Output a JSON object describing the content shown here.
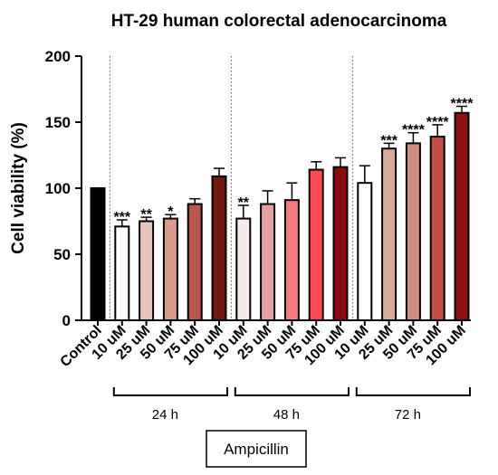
{
  "chart_data": {
    "type": "bar",
    "title": "HT-29  human colorectal adenocarcinoma",
    "ylabel": "Cell viability (%)",
    "xlabel": "",
    "ylim": [
      0,
      200
    ],
    "yticks": [
      "0",
      "50",
      "100",
      "150",
      "200"
    ],
    "categories": [
      "Control",
      "10 uM",
      "25 uM",
      "50 uM",
      "75 uM",
      "100 uM",
      "10 uM",
      "25 uM",
      "50 uM",
      "75 uM",
      "100 uM",
      "10 uM",
      "25 uM",
      "50 uM",
      "75 uM",
      "100 uM"
    ],
    "values": [
      100,
      71,
      75,
      77,
      88,
      109,
      77,
      88,
      91,
      114,
      116,
      104,
      130,
      134,
      139,
      157
    ],
    "errors": [
      0,
      5,
      3,
      3,
      4,
      6,
      10,
      10,
      13,
      6,
      7,
      13,
      4,
      8,
      9,
      5
    ],
    "significance": [
      "",
      "***",
      "**",
      "*",
      "",
      "",
      "**",
      "",
      "",
      "",
      "",
      "",
      "***",
      "****",
      "****",
      "****"
    ],
    "colors": [
      "#000000",
      "#ffffff",
      "#e7c3bb",
      "#d89a8b",
      "#b8584a",
      "#6e1a0e",
      "#f6e9e9",
      "#e5a0a2",
      "#f1797f",
      "#ff4a52",
      "#8a0a0e",
      "#ffffff",
      "#d7aa99",
      "#cb8d7e",
      "#c04f48",
      "#8c1212"
    ],
    "groups": [
      {
        "label": "24 h",
        "first": 1,
        "last": 5
      },
      {
        "label": "48 h",
        "first": 6,
        "last": 10
      },
      {
        "label": "72 h",
        "first": 11,
        "last": 15
      }
    ],
    "treatment_label": "Ampicillin",
    "grid": false,
    "legend": "none"
  }
}
